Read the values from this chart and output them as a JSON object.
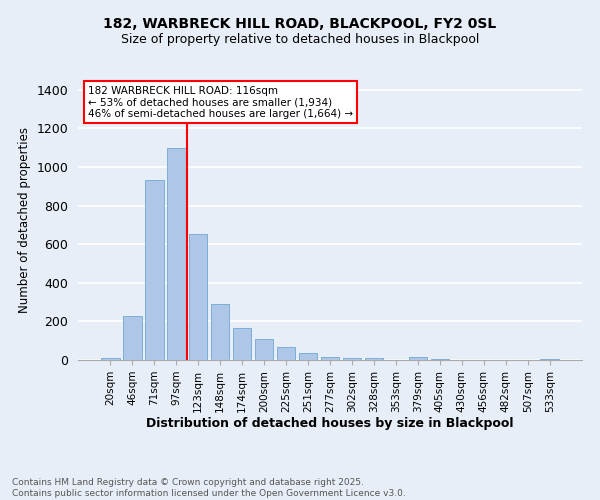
{
  "title": "182, WARBRECK HILL ROAD, BLACKPOOL, FY2 0SL",
  "subtitle": "Size of property relative to detached houses in Blackpool",
  "xlabel": "Distribution of detached houses by size in Blackpool",
  "ylabel": "Number of detached properties",
  "categories": [
    "20sqm",
    "46sqm",
    "71sqm",
    "97sqm",
    "123sqm",
    "148sqm",
    "174sqm",
    "200sqm",
    "225sqm",
    "251sqm",
    "277sqm",
    "302sqm",
    "328sqm",
    "353sqm",
    "379sqm",
    "405sqm",
    "430sqm",
    "456sqm",
    "482sqm",
    "507sqm",
    "533sqm"
  ],
  "values": [
    10,
    230,
    930,
    1100,
    650,
    290,
    165,
    110,
    65,
    35,
    15,
    10,
    10,
    0,
    15,
    5,
    0,
    0,
    0,
    0,
    5
  ],
  "bar_color": "#aec6e8",
  "bar_edge_color": "#7bafd4",
  "vline_color": "red",
  "vline_pos": 3.5,
  "annotation_title": "182 WARBRECK HILL ROAD: 116sqm",
  "annotation_line1": "← 53% of detached houses are smaller (1,934)",
  "annotation_line2": "46% of semi-detached houses are larger (1,664) →",
  "annotation_box_color": "white",
  "annotation_box_edgecolor": "red",
  "footer_line1": "Contains HM Land Registry data © Crown copyright and database right 2025.",
  "footer_line2": "Contains public sector information licensed under the Open Government Licence v3.0.",
  "ylim": [
    0,
    1450
  ],
  "background_color": "#e8eef7",
  "grid_color": "white",
  "title_fontsize": 10,
  "subtitle_fontsize": 9
}
